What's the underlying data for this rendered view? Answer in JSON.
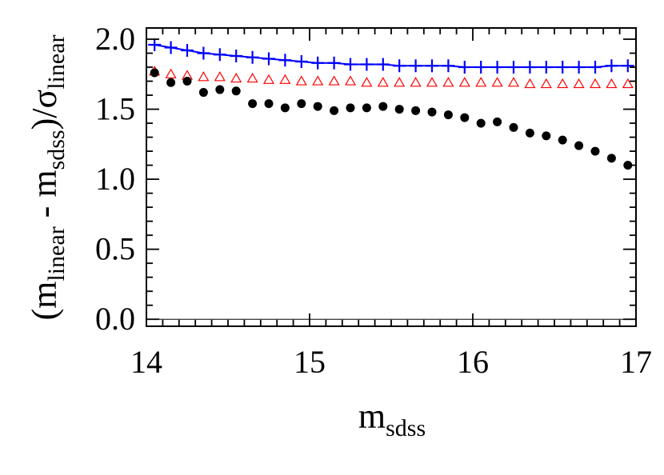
{
  "chart_data": {
    "type": "scatter",
    "title": "",
    "xlabel": {
      "base": "m",
      "sub": "sdss"
    },
    "ylabel": {
      "open": "(m",
      "sub1": "linear",
      "mid": " - m",
      "sub2": "sdss",
      "close": ")/σ",
      "sub3": "linear"
    },
    "xlim": [
      14,
      17
    ],
    "ylim": [
      -0.05,
      2.08
    ],
    "x_ticks": [
      14,
      15,
      16,
      17
    ],
    "x_tick_labels": [
      "14",
      "15",
      "16",
      "17"
    ],
    "y_ticks": [
      0,
      0.5,
      1,
      1.5,
      2
    ],
    "y_tick_labels": [
      "0.0",
      "0.5",
      "1.0",
      "1.5",
      "2.0"
    ],
    "reference_line_y": 0,
    "grid": false,
    "series": [
      {
        "marker": "plus",
        "line": true,
        "color": "#0000ff",
        "x": [
          14.05,
          14.15,
          14.25,
          14.35,
          14.45,
          14.55,
          14.65,
          14.75,
          14.85,
          14.95,
          15.05,
          15.15,
          15.25,
          15.35,
          15.45,
          15.55,
          15.65,
          15.75,
          15.85,
          15.95,
          16.05,
          16.15,
          16.25,
          16.35,
          16.45,
          16.55,
          16.65,
          16.75,
          16.85,
          16.95
        ],
        "y": [
          1.96,
          1.94,
          1.92,
          1.9,
          1.89,
          1.88,
          1.87,
          1.86,
          1.85,
          1.84,
          1.83,
          1.83,
          1.82,
          1.82,
          1.82,
          1.81,
          1.81,
          1.81,
          1.81,
          1.8,
          1.8,
          1.8,
          1.8,
          1.8,
          1.8,
          1.8,
          1.8,
          1.8,
          1.81,
          1.81
        ]
      },
      {
        "marker": "open-triangle",
        "line": false,
        "color": "#ff0000",
        "x": [
          14.05,
          14.15,
          14.25,
          14.35,
          14.45,
          14.55,
          14.65,
          14.75,
          14.85,
          14.95,
          15.05,
          15.15,
          15.25,
          15.35,
          15.45,
          15.55,
          15.65,
          15.75,
          15.85,
          15.95,
          16.05,
          16.15,
          16.25,
          16.35,
          16.45,
          16.55,
          16.65,
          16.75,
          16.85,
          16.95
        ],
        "y": [
          1.77,
          1.75,
          1.74,
          1.73,
          1.73,
          1.72,
          1.72,
          1.71,
          1.71,
          1.7,
          1.7,
          1.7,
          1.7,
          1.69,
          1.69,
          1.69,
          1.69,
          1.69,
          1.69,
          1.69,
          1.69,
          1.69,
          1.69,
          1.68,
          1.68,
          1.68,
          1.68,
          1.68,
          1.68,
          1.68
        ]
      },
      {
        "marker": "filled-circle",
        "line": false,
        "color": "#000000",
        "x": [
          14.05,
          14.15,
          14.25,
          14.35,
          14.45,
          14.55,
          14.65,
          14.75,
          14.85,
          14.95,
          15.05,
          15.15,
          15.25,
          15.35,
          15.45,
          15.55,
          15.65,
          15.75,
          15.85,
          15.95,
          16.05,
          16.15,
          16.25,
          16.35,
          16.45,
          16.55,
          16.65,
          16.75,
          16.85,
          16.95
        ],
        "y": [
          1.76,
          1.69,
          1.7,
          1.62,
          1.64,
          1.63,
          1.54,
          1.54,
          1.51,
          1.54,
          1.52,
          1.49,
          1.51,
          1.51,
          1.52,
          1.5,
          1.49,
          1.48,
          1.46,
          1.44,
          1.4,
          1.41,
          1.37,
          1.33,
          1.31,
          1.28,
          1.24,
          1.2,
          1.15,
          1.1
        ]
      }
    ]
  }
}
